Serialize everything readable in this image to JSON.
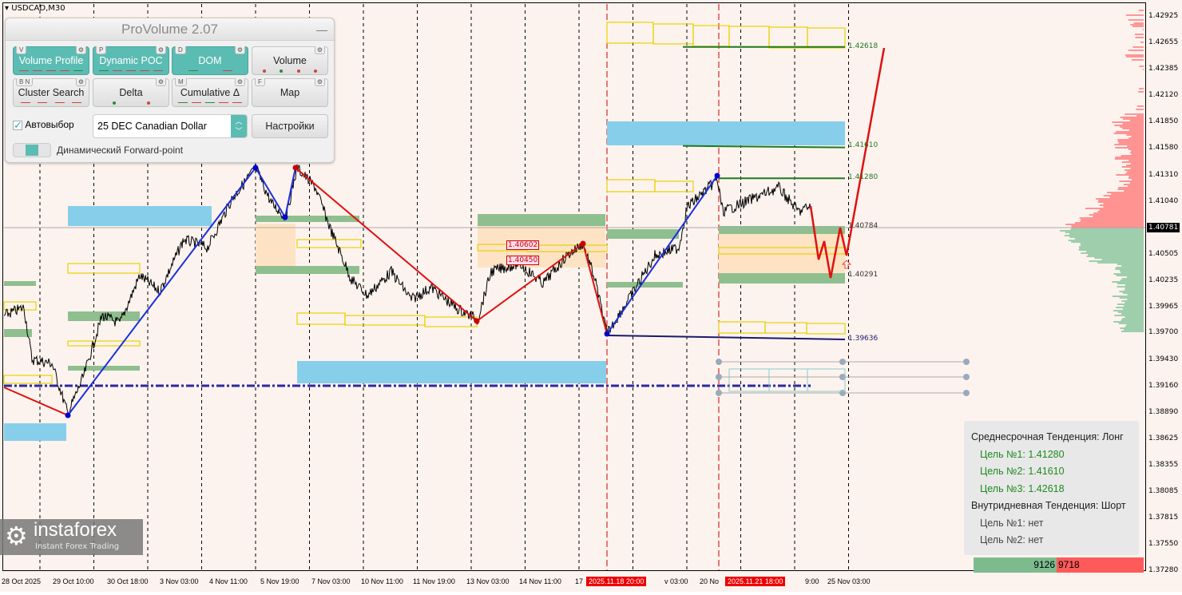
{
  "symbol": "USDCAD,M30",
  "panel": {
    "title": "ProVolume 2.07",
    "minimize_icon": "minimize-icon",
    "buttons": [
      {
        "label": "Volume Profile",
        "key": "V",
        "active": true
      },
      {
        "label": "Dynamic POC",
        "key": "P",
        "active": true
      },
      {
        "label": "DOM",
        "key": "D",
        "active": true
      },
      {
        "label": "Volume",
        "key": "",
        "active": false
      },
      {
        "label": "Cluster Search",
        "key": "B N",
        "active": false
      },
      {
        "label": "Delta",
        "key": "",
        "active": false
      },
      {
        "label": "Cumulative Δ",
        "key": "M",
        "active": false
      },
      {
        "label": "Map",
        "key": "F",
        "active": false
      }
    ],
    "autoselect_label": "Автовыбор",
    "autoselect_checked": true,
    "instrument": "25 DEC Canadian Dollar",
    "settings_label": "Настройки",
    "toggle_label": "Динамический Forward-point"
  },
  "price_axis": [
    "1.42925",
    "1.42655",
    "1.42385",
    "1.42120",
    "1.41850",
    "1.41580",
    "1.41310",
    "1.41040",
    "1.40505",
    "1.40235",
    "1.39965",
    "1.39700",
    "1.39430",
    "1.39160",
    "1.38890",
    "1.38625",
    "1.38355",
    "1.38085",
    "1.37815",
    "1.37550",
    "1.37280"
  ],
  "current_price": "1.40781",
  "time_axis": [
    "28 Oct 2025",
    "29 Oct 10:00",
    "30 Oct 18:00",
    "3 Nov 03:00",
    "4 Nov 11:00",
    "5 Nov 19:00",
    "7 Nov 03:00",
    "10 Nov 11:00",
    "11 Nov 19:00",
    "13 Nov 03:00",
    "14 Nov 11:00",
    "17",
    "v 03:00",
    "20 No",
    "9:00",
    "25 Nov 03:00"
  ],
  "time_markers": [
    "2025.11.18 20:00",
    "2025.11.21 18:00"
  ],
  "levels": [
    {
      "label": "1.42618",
      "price": 1.42618,
      "color": "#1e7a1e"
    },
    {
      "label": "1.41610",
      "price": 1.4161,
      "color": "#1e7a1e"
    },
    {
      "label": "1.41280",
      "price": 1.4128,
      "color": "#1e7a1e"
    },
    {
      "label": "1.40784",
      "price": 1.40784,
      "color": "#333333"
    },
    {
      "label": "1.40291",
      "price": 1.40291,
      "color": "#333333"
    },
    {
      "label": "1.39636",
      "price": 1.39636,
      "color": "#1a1a6e"
    }
  ],
  "box_labels": [
    "1.40602",
    "1.40450"
  ],
  "info": {
    "medium_title": "Среднесрочная Тенденция: Лонг",
    "medium_targets": [
      "Цель №1: 1.41280",
      "Цель №2: 1.41610",
      "Цель №3: 1.42618"
    ],
    "intraday_title": "Внутридневная Тенденция: Шорт",
    "intraday_targets": [
      "Цель №1: нет",
      "Цель №2: нет"
    ]
  },
  "volume_balance": {
    "buy": "9126",
    "sell": "9718",
    "buy_color": "#7dbb8f",
    "sell_color": "#ff5a5a"
  },
  "logo": {
    "name": "instaforex",
    "tagline": "Instant Forex Trading"
  },
  "colors": {
    "background": "#fdf3ee",
    "accent": "#5bbcb3",
    "zigzag_up": "#1a2ee0",
    "zigzag_down": "#e01010"
  }
}
